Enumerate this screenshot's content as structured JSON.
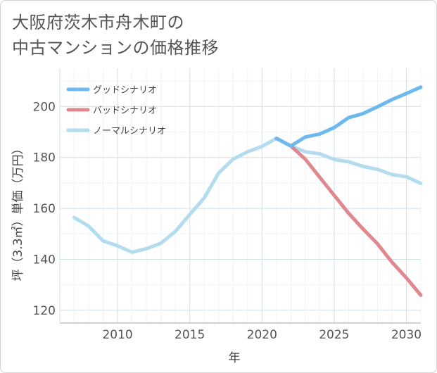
{
  "title": {
    "line1": "大阪府茨木市舟木町の",
    "line2": "中古マンションの価格推移"
  },
  "chart_data": {
    "type": "line",
    "title": "大阪府茨木市舟木町の中古マンションの価格推移",
    "xlabel": "年",
    "ylabel": "坪（3.3㎡）単価（万円）",
    "xlim": [
      2006,
      2031
    ],
    "ylim": [
      115,
      215
    ],
    "xticks": [
      2010,
      2015,
      2020,
      2025,
      2030
    ],
    "yticks": [
      120,
      140,
      160,
      180,
      200
    ],
    "grid": true,
    "legend_position": "top-left",
    "series": [
      {
        "name": "グッドシナリオ",
        "color": "#6cb9ef",
        "x": [
          2021,
          2022,
          2023,
          2024,
          2025,
          2026,
          2027,
          2028,
          2029,
          2030,
          2031
        ],
        "y": [
          187.5,
          184.5,
          188,
          189.2,
          191.7,
          195.6,
          197.2,
          199.9,
          202.7,
          205.1,
          207.6
        ]
      },
      {
        "name": "バッドシナリオ",
        "color": "#e08890",
        "x": [
          2021,
          2022,
          2023,
          2024,
          2025,
          2026,
          2027,
          2028,
          2029,
          2030,
          2031
        ],
        "y": [
          187.5,
          184.5,
          179.3,
          172.2,
          165.1,
          158.1,
          151.9,
          146.1,
          138.9,
          132.7,
          125.9
        ]
      },
      {
        "name": "ノーマルシナリオ",
        "color": "#b3dcef",
        "x": [
          2007,
          2008,
          2009,
          2010,
          2011,
          2012,
          2013,
          2014,
          2015,
          2016,
          2017,
          2018,
          2019,
          2020,
          2021,
          2022,
          2023,
          2024,
          2025,
          2026,
          2027,
          2028,
          2029,
          2030,
          2031
        ],
        "y": [
          156.4,
          153,
          147.2,
          145.3,
          142.8,
          144.2,
          146.3,
          151,
          157.6,
          164.1,
          173.9,
          179.3,
          182.2,
          184.3,
          187.5,
          184.5,
          182.2,
          181.4,
          179.2,
          178.3,
          176.5,
          175.3,
          173.3,
          172.4,
          169.8
        ]
      }
    ]
  }
}
